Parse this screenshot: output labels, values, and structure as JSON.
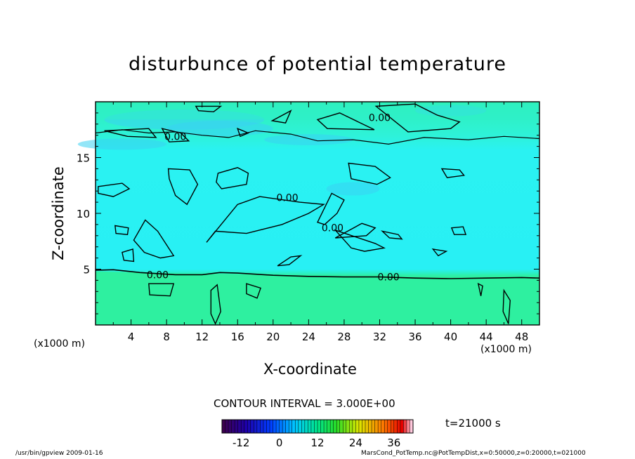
{
  "chart_data": {
    "type": "heatmap",
    "title": "disturbunce of potential temperature",
    "xlabel": "X-coordinate",
    "ylabel": "Z-coordinate",
    "xunit_left": "(x1000 m)",
    "xunit_right": "(x1000 m)",
    "xlim": [
      0,
      50
    ],
    "ylim": [
      0,
      20
    ],
    "x_ticks": [
      "4",
      "8",
      "12",
      "16",
      "20",
      "24",
      "28",
      "32",
      "36",
      "40",
      "44",
      "48"
    ],
    "x_tick_values": [
      4,
      8,
      12,
      16,
      20,
      24,
      28,
      32,
      36,
      40,
      44,
      48
    ],
    "y_ticks": [
      "5",
      "10",
      "15"
    ],
    "y_tick_values": [
      5,
      10,
      15
    ],
    "contour_interval_text": "CONTOUR INTERVAL = 3.000E+00",
    "contour_labels": [
      "0.00",
      "0.00",
      "0.00",
      "0.00",
      "0.00",
      "0.00"
    ],
    "colorbar_ticks": [
      "-12",
      "0",
      "12",
      "24",
      "36"
    ],
    "colorbar_tick_values": [
      -12,
      0,
      12,
      24,
      36
    ],
    "colorbar_range": [
      -18,
      42
    ],
    "field_description": "Values near zero everywhere; cyan band (slightly negative) above z≈5, green layer (slightly positive) below z≈4.5 and near the top",
    "time_label": "t=21000 s",
    "footer_left": "/usr/bin/gpview   2009-01-16",
    "footer_right": "MarsCond_PotTemp.nc@PotTempDist,x=0:50000,z=0:20000,t=021000"
  },
  "colors": {
    "cyan": "#2af2f2",
    "green": "#2ef0a0",
    "light_blue": "#3ad8f0",
    "contour": "#000000"
  }
}
